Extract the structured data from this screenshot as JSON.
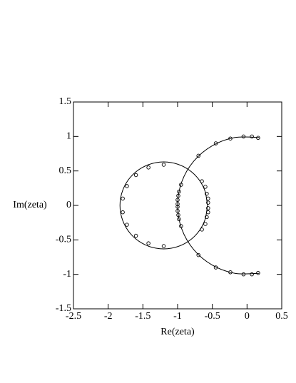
{
  "chart_data": {
    "type": "scatter",
    "xlabel": "Re(zeta)",
    "ylabel": "Im(zeta)",
    "xlim": [
      -2.5,
      0.5
    ],
    "ylim": [
      -1.5,
      1.5
    ],
    "xticks": [
      -2.5,
      -2,
      -1.5,
      -1,
      -0.5,
      0,
      0.5
    ],
    "yticks": [
      -1.5,
      -1,
      -0.5,
      0,
      0.5,
      1,
      1.5
    ],
    "color": "#000000",
    "points": {
      "x": [
        -1.2,
        -1.42,
        -1.6,
        -1.73,
        -1.79,
        -1.79,
        -1.73,
        -1.6,
        -1.42,
        -1.2,
        -0.65,
        -0.6,
        -0.58,
        -0.56,
        -0.56,
        -0.56,
        -0.56,
        -0.58,
        -0.6,
        -0.65,
        -0.95,
        -0.98,
        -0.99,
        -1.0,
        -1.0,
        -1.0,
        -1.0,
        -0.99,
        -0.98,
        -0.95,
        -0.7,
        -0.45,
        -0.24,
        -0.05,
        0.07,
        0.16,
        -0.7,
        -0.45,
        -0.24,
        -0.05,
        0.07,
        0.16
      ],
      "y": [
        0.59,
        0.55,
        0.44,
        0.28,
        0.1,
        -0.1,
        -0.28,
        -0.44,
        -0.55,
        -0.59,
        0.35,
        0.27,
        0.17,
        0.1,
        0.04,
        -0.04,
        -0.1,
        -0.17,
        -0.27,
        -0.35,
        0.3,
        0.2,
        0.14,
        0.08,
        0.02,
        -0.02,
        -0.08,
        -0.14,
        -0.2,
        -0.3,
        0.72,
        0.9,
        0.97,
        1.0,
        1.0,
        0.98,
        -0.72,
        -0.9,
        -0.97,
        -1.0,
        -1.0,
        -0.98
      ]
    },
    "curves": [
      {
        "x": [
          -0.57,
          -0.608,
          -0.717,
          -0.885,
          -1.09,
          -1.31,
          -1.515,
          -1.683,
          -1.792,
          -1.83,
          -1.792,
          -1.683,
          -1.515,
          -1.31,
          -1.09,
          -0.885,
          -0.717,
          -0.608,
          -0.57
        ],
        "y": [
          0,
          0.215,
          0.405,
          0.546,
          0.621,
          0.621,
          0.546,
          0.405,
          0.215,
          0,
          -0.215,
          -0.405,
          -0.546,
          -0.621,
          -0.621,
          -0.546,
          -0.405,
          -0.215,
          0
        ]
      },
      {
        "x": [
          0.174,
          -0.174,
          -0.5,
          -0.766,
          -0.94,
          -1,
          -0.94,
          -0.766,
          -0.5,
          -0.174,
          0.174
        ],
        "y": [
          0.985,
          0.985,
          0.866,
          0.643,
          0.342,
          0,
          -0.342,
          -0.643,
          -0.866,
          -0.985,
          -0.985
        ]
      }
    ]
  }
}
